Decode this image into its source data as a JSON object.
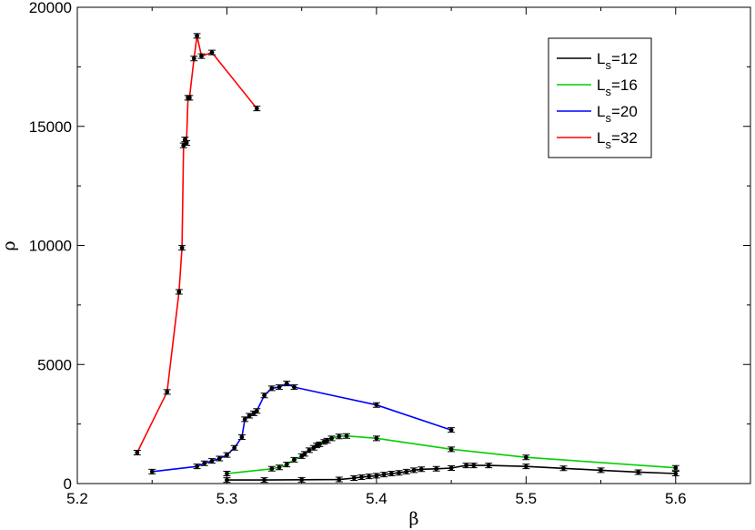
{
  "chart_data": {
    "type": "line",
    "title": "",
    "xlabel": "β",
    "ylabel": "ρ",
    "xlim": [
      5.2,
      5.65
    ],
    "ylim": [
      0,
      20000
    ],
    "x_ticks": [
      "5.2",
      "5.3",
      "5.4",
      "5.5",
      "5.6"
    ],
    "y_ticks": [
      "0",
      "5000",
      "10000",
      "15000",
      "20000"
    ],
    "grid": false,
    "legend_position": "top-right",
    "series": [
      {
        "name": "L",
        "subscript": "s",
        "suffix": "=12",
        "color": "#000000",
        "x": [
          5.3,
          5.325,
          5.35,
          5.375,
          5.385,
          5.39,
          5.395,
          5.4,
          5.405,
          5.41,
          5.415,
          5.42,
          5.425,
          5.43,
          5.44,
          5.45,
          5.46,
          5.465,
          5.475,
          5.5,
          5.525,
          5.55,
          5.575,
          5.6
        ],
        "y": [
          150,
          150,
          160,
          170,
          230,
          270,
          300,
          330,
          380,
          420,
          450,
          500,
          560,
          600,
          620,
          650,
          760,
          760,
          760,
          720,
          640,
          560,
          480,
          420
        ]
      },
      {
        "name": "L",
        "subscript": "s",
        "suffix": "=16",
        "color": "#00d000",
        "x": [
          5.3,
          5.33,
          5.335,
          5.34,
          5.345,
          5.35,
          5.352,
          5.355,
          5.358,
          5.36,
          5.362,
          5.365,
          5.367,
          5.37,
          5.375,
          5.38,
          5.4,
          5.45,
          5.5,
          5.6
        ],
        "y": [
          420,
          620,
          680,
          800,
          1000,
          1150,
          1250,
          1400,
          1500,
          1600,
          1650,
          1750,
          1800,
          1900,
          1980,
          2000,
          1900,
          1440,
          1100,
          660
        ]
      },
      {
        "name": "L",
        "subscript": "s",
        "suffix": "=20",
        "color": "#0000ff",
        "x": [
          5.25,
          5.28,
          5.285,
          5.29,
          5.295,
          5.3,
          5.305,
          5.31,
          5.312,
          5.315,
          5.318,
          5.32,
          5.325,
          5.33,
          5.335,
          5.34,
          5.345,
          5.4,
          5.45
        ],
        "y": [
          500,
          720,
          850,
          950,
          1050,
          1200,
          1500,
          1950,
          2700,
          2850,
          2950,
          3050,
          3700,
          4000,
          4050,
          4200,
          4050,
          3300,
          2250
        ]
      },
      {
        "name": "L",
        "subscript": "s",
        "suffix": "=32",
        "color": "#ff0000",
        "x": [
          5.24,
          5.26,
          5.268,
          5.27,
          5.271,
          5.272,
          5.273,
          5.274,
          5.275,
          5.278,
          5.28,
          5.283,
          5.29,
          5.32
        ],
        "y": [
          1300,
          3850,
          8050,
          9900,
          14200,
          14450,
          14300,
          16200,
          16200,
          17850,
          18800,
          17950,
          18100,
          15750
        ]
      }
    ]
  }
}
